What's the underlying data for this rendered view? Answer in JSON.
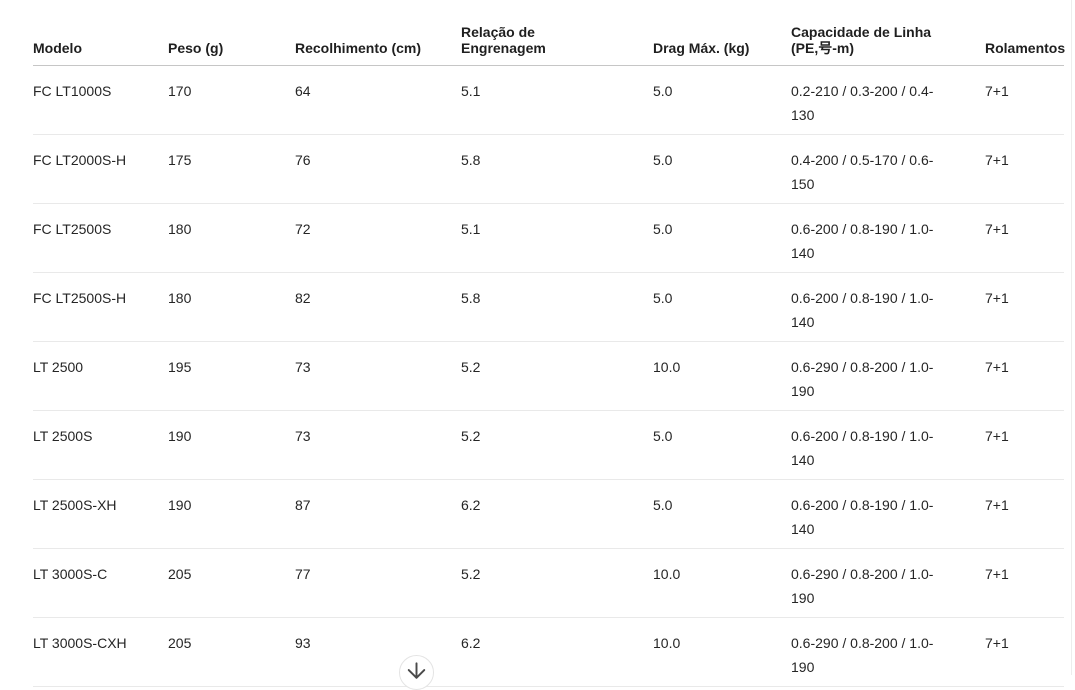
{
  "colors": {
    "header_rule": "#c6c6c6",
    "row_rule": "#e9e9e9",
    "text": "#212121"
  },
  "table": {
    "columns": [
      {
        "id": "modelo",
        "label": "Modelo"
      },
      {
        "id": "peso",
        "label": "Peso (g)"
      },
      {
        "id": "recolhimento",
        "label": "Recolhimento (cm)"
      },
      {
        "id": "relacao",
        "label": "Relação de\nEngrenagem"
      },
      {
        "id": "drag",
        "label": "Drag Máx. (kg)"
      },
      {
        "id": "capacidade",
        "label": "Capacidade de Linha\n(PE,号-m)"
      },
      {
        "id": "rolamentos",
        "label": "Rolamentos"
      }
    ],
    "rows": [
      {
        "modelo": "FC LT1000S",
        "peso": "170",
        "recolhimento": "64",
        "relacao": "5.1",
        "drag": "5.0",
        "capacidade": "0.2-210 / 0.3-200 / 0.4-130",
        "rolamentos": "7+1"
      },
      {
        "modelo": "FC LT2000S-H",
        "peso": "175",
        "recolhimento": "76",
        "relacao": "5.8",
        "drag": "5.0",
        "capacidade": "0.4-200 / 0.5-170 / 0.6-150",
        "rolamentos": "7+1"
      },
      {
        "modelo": "FC LT2500S",
        "peso": "180",
        "recolhimento": "72",
        "relacao": "5.1",
        "drag": "5.0",
        "capacidade": "0.6-200 / 0.8-190 / 1.0-140",
        "rolamentos": "7+1"
      },
      {
        "modelo": "FC LT2500S-H",
        "peso": "180",
        "recolhimento": "82",
        "relacao": "5.8",
        "drag": "5.0",
        "capacidade": "0.6-200 / 0.8-190 / 1.0-140",
        "rolamentos": "7+1"
      },
      {
        "modelo": "LT 2500",
        "peso": "195",
        "recolhimento": "73",
        "relacao": "5.2",
        "drag": "10.0",
        "capacidade": "0.6-290 / 0.8-200 / 1.0-190",
        "rolamentos": "7+1"
      },
      {
        "modelo": "LT 2500S",
        "peso": "190",
        "recolhimento": "73",
        "relacao": "5.2",
        "drag": "5.0",
        "capacidade": "0.6-200 / 0.8-190 / 1.0-140",
        "rolamentos": "7+1"
      },
      {
        "modelo": "LT 2500S-XH",
        "peso": "190",
        "recolhimento": "87",
        "relacao": "6.2",
        "drag": "5.0",
        "capacidade": "0.6-200 / 0.8-190 / 1.0-140",
        "rolamentos": "7+1"
      },
      {
        "modelo": "LT 3000S-C",
        "peso": "205",
        "recolhimento": "77",
        "relacao": "5.2",
        "drag": "10.0",
        "capacidade": "0.6-290 / 0.8-200 / 1.0-190",
        "rolamentos": "7+1"
      },
      {
        "modelo": "LT 3000S-CXH",
        "peso": "205",
        "recolhimento": "93",
        "relacao": "6.2",
        "drag": "10.0",
        "capacidade": "0.6-290 / 0.8-200 / 1.0-190",
        "rolamentos": "7+1"
      }
    ]
  },
  "scroll_button": {
    "icon": "down-arrow"
  }
}
